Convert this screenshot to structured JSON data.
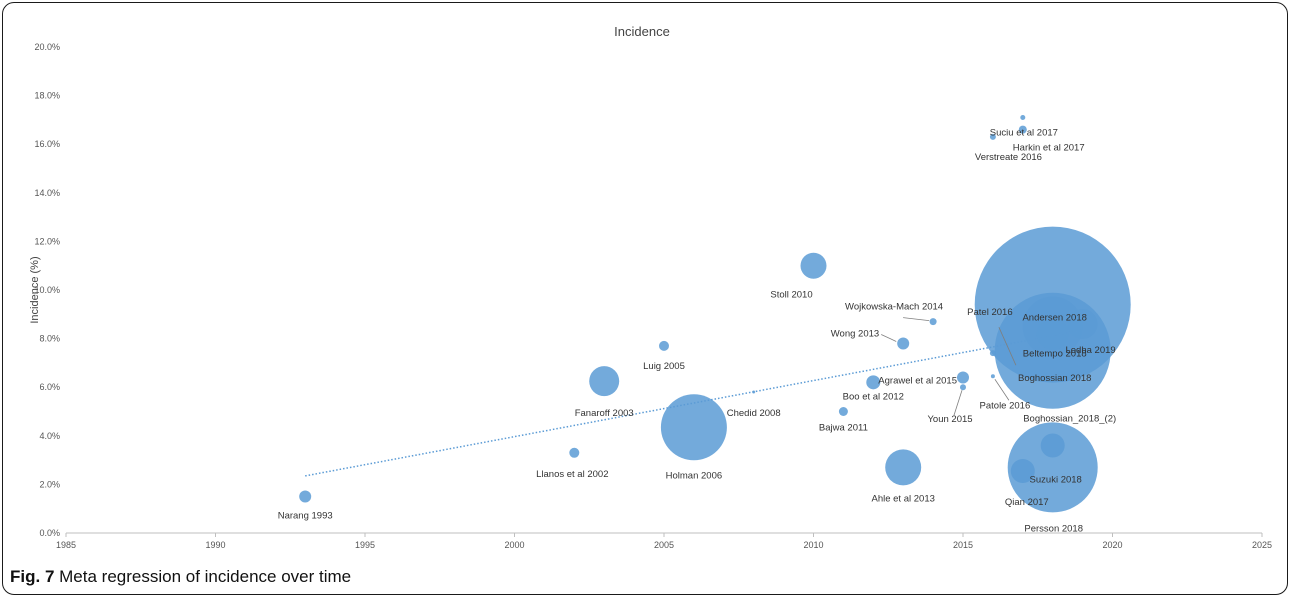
{
  "caption": {
    "figure_label": "Fig. 7",
    "text": "Meta regression of incidence over time"
  },
  "colors": {
    "bubble": "#5b9bd5",
    "trend": "#5b9bd5",
    "axis": "#bfbfbf",
    "leader": "#7f7f7f"
  },
  "chart_data": {
    "type": "scatter",
    "title": "Incidence",
    "ylabel": "Incidence (%)",
    "xlabel": "",
    "xlim": [
      1985,
      2025
    ],
    "ylim": [
      0,
      20
    ],
    "x_ticks": [
      "1985",
      "1990",
      "1995",
      "2000",
      "2005",
      "2010",
      "2015",
      "2020",
      "2025"
    ],
    "y_ticks": [
      "0.0%",
      "2.0%",
      "4.0%",
      "6.0%",
      "8.0%",
      "10.0%",
      "12.0%",
      "14.0%",
      "16.0%",
      "18.0%",
      "20.0%"
    ],
    "grid": false,
    "legend": "none",
    "trendline": {
      "x": [
        1993,
        2019
      ],
      "y": [
        2.35,
        8.35
      ],
      "style": "dotted"
    },
    "points": [
      {
        "label": "Narang 1993",
        "x": 1993,
        "y": 1.5,
        "r": 6
      },
      {
        "label": "Llanos et al 2002",
        "x": 2002,
        "y": 3.3,
        "r": 5
      },
      {
        "label": "Fanaroff 2003",
        "x": 2003,
        "y": 6.25,
        "r": 15
      },
      {
        "label": "Luig 2005",
        "x": 2005,
        "y": 7.7,
        "r": 5
      },
      {
        "label": "Holman 2006",
        "x": 2006,
        "y": 4.35,
        "r": 33
      },
      {
        "label": "Chedid 2008",
        "x": 2008,
        "y": 5.8,
        "r": 1.5
      },
      {
        "label": "Stoll 2010",
        "x": 2010,
        "y": 11.0,
        "r": 13
      },
      {
        "label": "Bajwa 2011",
        "x": 2011,
        "y": 5.0,
        "r": 4.5
      },
      {
        "label": "Boo et al 2012",
        "x": 2012,
        "y": 6.2,
        "r": 7
      },
      {
        "label": "Wong 2013",
        "x": 2013,
        "y": 7.8,
        "r": 6
      },
      {
        "label": "Ahle et al 2013",
        "x": 2013,
        "y": 2.7,
        "r": 18
      },
      {
        "label": "Wojkowska-Mach 2014",
        "x": 2014,
        "y": 8.7,
        "r": 3.5
      },
      {
        "label": "Agrawel et al 2015",
        "x": 2015,
        "y": 6.4,
        "r": 6
      },
      {
        "label": "Youn 2015",
        "x": 2015,
        "y": 6.0,
        "r": 3
      },
      {
        "label": "Patel 2016",
        "x": 2016,
        "y": 7.4,
        "r": 3
      },
      {
        "label": "Patole 2016",
        "x": 2016,
        "y": 6.45,
        "r": 2
      },
      {
        "label": "Verstreate 2016",
        "x": 2016,
        "y": 16.3,
        "r": 3
      },
      {
        "label": "Harkin et al 2017",
        "x": 2017,
        "y": 16.6,
        "r": 4
      },
      {
        "label": "Suciu et al 2017",
        "x": 2017,
        "y": 17.1,
        "r": 2.5
      },
      {
        "label": "Qian 2017",
        "x": 2017,
        "y": 2.55,
        "r": 12
      },
      {
        "label": "Andersen 2018",
        "x": 2018,
        "y": 9.4,
        "r": 78
      },
      {
        "label": "Beltempo 2018",
        "x": 2018,
        "y": 8.5,
        "r": 30
      },
      {
        "label": "Boghossian 2018",
        "x": 2018,
        "y": 7.5,
        "r": 58
      },
      {
        "label": "Boghossian_2018_(2)",
        "x": 2018,
        "y": 8.2,
        "r": 16
      },
      {
        "label": "Suzuki 2018",
        "x": 2018,
        "y": 3.6,
        "r": 12
      },
      {
        "label": "Persson 2018",
        "x": 2018,
        "y": 2.7,
        "r": 45
      },
      {
        "label": "Lodha 2019",
        "x": 2019,
        "y": 8.6,
        "r": 15
      }
    ]
  }
}
